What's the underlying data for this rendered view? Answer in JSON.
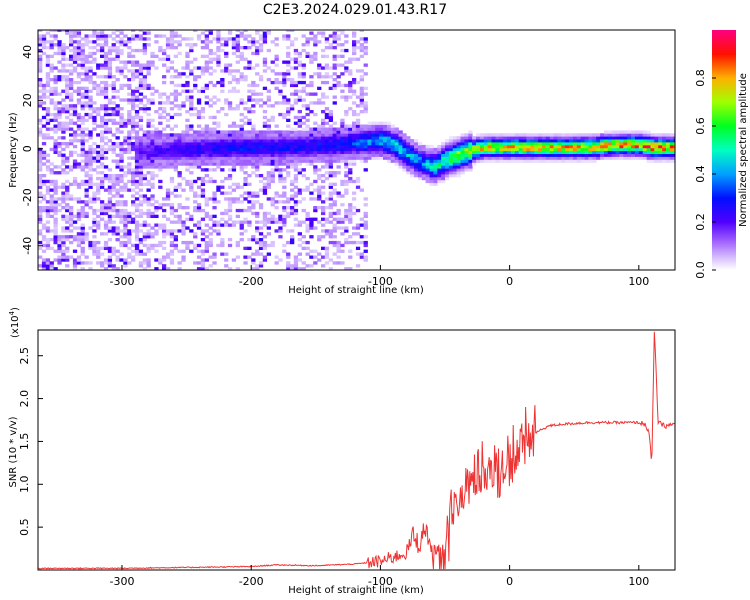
{
  "title": "C2E3.2024.029.01.43.R17",
  "chart_data": [
    {
      "type": "heatmap",
      "xlabel": "Height of straight line (km)",
      "ylabel": "Frequency (Hz)",
      "xlim": [
        -365,
        128
      ],
      "ylim": [
        -50,
        49
      ],
      "xticks": [
        -300,
        -200,
        -100,
        0,
        100
      ],
      "yticks": [
        -40,
        -20,
        0,
        20,
        40
      ],
      "colorbar": {
        "label": "Normalized spectral amplitude",
        "range": [
          0.0,
          1.0
        ],
        "ticks": [
          0.0,
          0.2,
          0.4,
          0.6,
          0.8
        ],
        "colormap": [
          "#ffffff",
          "#b78cff",
          "#6a00ff",
          "#0000ff",
          "#00c8ff",
          "#00ff60",
          "#c8ff00",
          "#ff9000",
          "#ff0000",
          "#ff0090"
        ]
      },
      "ridge": {
        "x": [
          -290,
          -260,
          -220,
          -180,
          -140,
          -120,
          -100,
          -90,
          -80,
          -70,
          -60,
          -50,
          -40,
          -30,
          -20,
          0,
          20,
          40,
          60,
          80,
          100,
          110,
          128
        ],
        "y": [
          -2,
          -1,
          0,
          0,
          1,
          2,
          3,
          1,
          -3,
          -6,
          -8,
          -5,
          -3,
          -1,
          0,
          0,
          0,
          0,
          0,
          1,
          1,
          0,
          0
        ],
        "amplitude": [
          0.2,
          0.25,
          0.3,
          0.3,
          0.3,
          0.35,
          0.45,
          0.5,
          0.45,
          0.4,
          0.5,
          0.6,
          0.7,
          0.75,
          0.8,
          0.8,
          0.82,
          0.82,
          0.82,
          0.84,
          0.88,
          0.9,
          0.85
        ]
      },
      "noise_region_x": [
        -365,
        -110
      ]
    },
    {
      "type": "line",
      "xlabel": "Height of straight line (km)",
      "ylabel": "SNR (10 * v/v)",
      "scale_label": "(x10",
      "scale_exp": "4",
      "scale_close": ")",
      "xlim": [
        -365,
        128
      ],
      "ylim": [
        0,
        2.8
      ],
      "xticks": [
        -300,
        -200,
        -100,
        0,
        100
      ],
      "yticks": [
        0.5,
        1.0,
        1.5,
        2.0,
        2.5
      ],
      "series": [
        {
          "color": "#ee3333",
          "x": [
            -365,
            -300,
            -250,
            -200,
            -180,
            -150,
            -120,
            -100,
            -90,
            -80,
            -75,
            -70,
            -65,
            -60,
            -55,
            -50,
            -45,
            -40,
            -35,
            -30,
            -25,
            -20,
            -15,
            -10,
            -5,
            0,
            10,
            20,
            30,
            40,
            60,
            80,
            100,
            105,
            108,
            110,
            112,
            115,
            120,
            128
          ],
          "y": [
            0.02,
            0.02,
            0.03,
            0.04,
            0.06,
            0.05,
            0.07,
            0.1,
            0.15,
            0.2,
            0.4,
            0.3,
            0.5,
            0.2,
            0.1,
            0.15,
            0.6,
            0.8,
            0.9,
            1.0,
            1.1,
            1.2,
            1.05,
            1.1,
            1.25,
            1.3,
            1.45,
            1.6,
            1.68,
            1.7,
            1.72,
            1.72,
            1.72,
            1.7,
            1.6,
            1.2,
            2.8,
            1.72,
            1.68,
            1.7
          ]
        }
      ]
    }
  ]
}
